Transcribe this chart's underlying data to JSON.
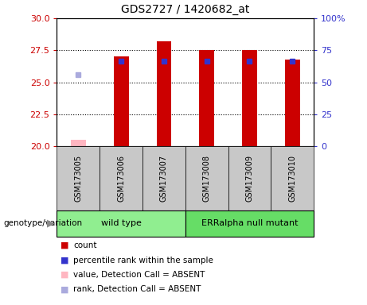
{
  "title": "GDS2727 / 1420682_at",
  "samples": [
    "GSM173005",
    "GSM173006",
    "GSM173007",
    "GSM173008",
    "GSM173009",
    "GSM173010"
  ],
  "ylim_left": [
    20,
    30
  ],
  "ylim_right": [
    0,
    100
  ],
  "yticks_left": [
    20,
    22.5,
    25,
    27.5,
    30
  ],
  "yticks_right": [
    0,
    25,
    50,
    75,
    100
  ],
  "bar_bottom": 20,
  "red_values": [
    20.5,
    27.0,
    28.2,
    27.5,
    27.5,
    26.8
  ],
  "blue_values": [
    25.6,
    26.65,
    26.65,
    26.65,
    26.65,
    26.65
  ],
  "absent_sample_idx": 0,
  "bar_color_red": "#CC0000",
  "bar_color_blue": "#3333CC",
  "bar_color_pink": "#FFB6C1",
  "bar_color_lightblue": "#AAAADD",
  "bar_width": 0.35,
  "plot_bg_color": "#FFFFFF",
  "grid_color": "black",
  "left_tick_color": "#CC0000",
  "right_tick_color": "#3333CC",
  "legend_items": [
    {
      "label": "count",
      "color": "#CC0000"
    },
    {
      "label": "percentile rank within the sample",
      "color": "#3333CC"
    },
    {
      "label": "value, Detection Call = ABSENT",
      "color": "#FFB6C1"
    },
    {
      "label": "rank, Detection Call = ABSENT",
      "color": "#AAAADD"
    }
  ],
  "xlabel_genotype": "genotype/variation",
  "cell_bg": "#C8C8C8",
  "group_labels": [
    "wild type",
    "ERRalpha null mutant"
  ],
  "group_colors": [
    "#90EE90",
    "#66DD66"
  ],
  "group_ranges": [
    [
      0,
      3
    ],
    [
      3,
      6
    ]
  ]
}
